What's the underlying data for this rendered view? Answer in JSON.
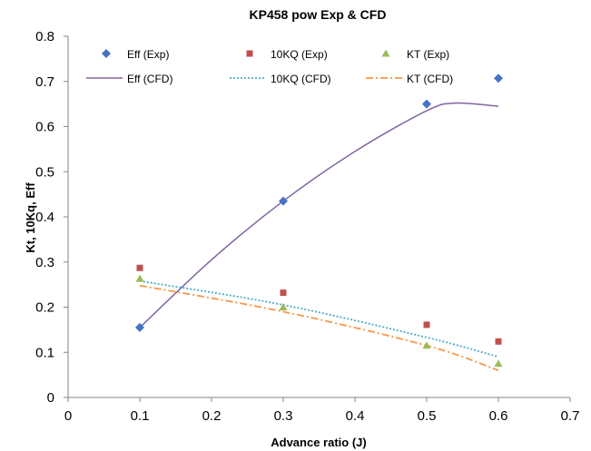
{
  "chart_data": {
    "type": "scatter",
    "title": "KP458 pow Exp & CFD",
    "xlabel": "Advance ratio (J)",
    "ylabel": "Kt, 10Kq, Eff",
    "xlim": [
      0,
      0.7
    ],
    "ylim": [
      0,
      0.8
    ],
    "x_ticks": [
      "0",
      "0.1",
      "0.2",
      "0.3",
      "0.4",
      "0.5",
      "0.6",
      "0.7"
    ],
    "y_ticks": [
      "0",
      "0.1",
      "0.2",
      "0.3",
      "0.4",
      "0.5",
      "0.6",
      "0.7",
      "0.8"
    ],
    "grid": false,
    "legend_position": "top",
    "series": [
      {
        "name": "Eff (Exp)",
        "kind": "marker",
        "marker": "diamond",
        "color": "#4472C4",
        "x": [
          0.1,
          0.3,
          0.5,
          0.6
        ],
        "y": [
          0.155,
          0.435,
          0.65,
          0.707
        ]
      },
      {
        "name": "10KQ (Exp)",
        "kind": "marker",
        "marker": "square",
        "color": "#C0504D",
        "x": [
          0.1,
          0.3,
          0.5,
          0.6
        ],
        "y": [
          0.287,
          0.232,
          0.161,
          0.124
        ]
      },
      {
        "name": "KT (Exp)",
        "kind": "marker",
        "marker": "triangle",
        "color": "#9BBB59",
        "x": [
          0.1,
          0.3,
          0.5,
          0.6
        ],
        "y": [
          0.263,
          0.2,
          0.115,
          0.075
        ]
      },
      {
        "name": "Eff (CFD)",
        "kind": "line",
        "style": "solid",
        "color": "#8064A2",
        "x": [
          0.1,
          0.2,
          0.3,
          0.4,
          0.5,
          0.54,
          0.6
        ],
        "y": [
          0.155,
          0.305,
          0.435,
          0.545,
          0.635,
          0.652,
          0.645
        ]
      },
      {
        "name": "10KQ (CFD)",
        "kind": "line",
        "style": "dotted",
        "color": "#4BACC6",
        "x": [
          0.1,
          0.3,
          0.5,
          0.6
        ],
        "y": [
          0.258,
          0.205,
          0.133,
          0.09
        ]
      },
      {
        "name": "KT (CFD)",
        "kind": "line",
        "style": "dashdot",
        "color": "#F79646",
        "x": [
          0.1,
          0.3,
          0.5,
          0.6
        ],
        "y": [
          0.248,
          0.19,
          0.115,
          0.06
        ]
      }
    ]
  }
}
